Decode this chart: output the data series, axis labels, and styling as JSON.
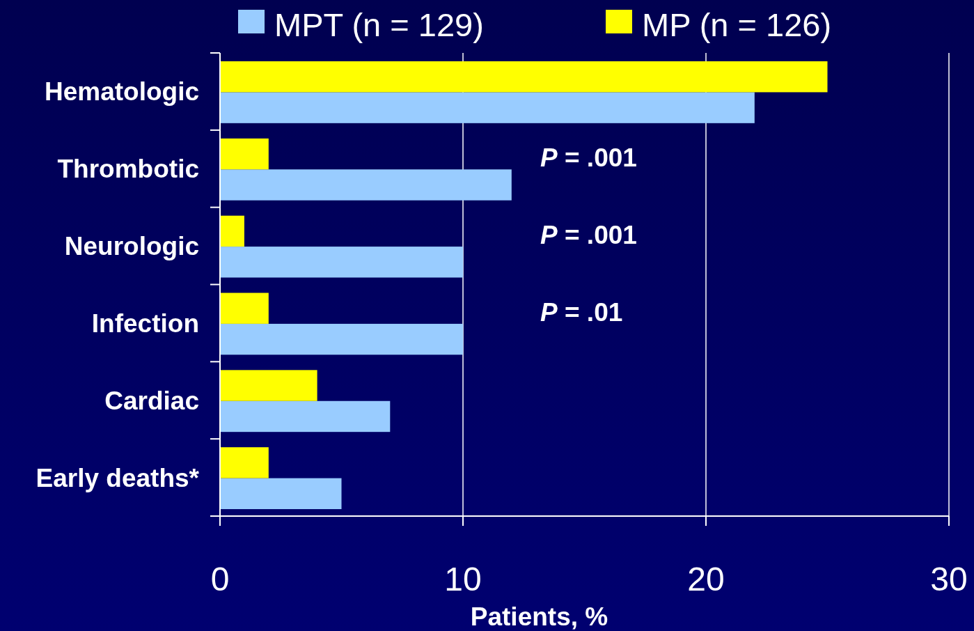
{
  "chart_data": {
    "type": "bar",
    "orientation": "horizontal",
    "categories": [
      "Hematologic",
      "Thrombotic",
      "Neurologic",
      "Infection",
      "Cardiac",
      "Early deaths*"
    ],
    "series": [
      {
        "name": "MPT (n = 129)",
        "color": "#99ccff",
        "values": [
          22,
          12,
          10,
          10,
          7,
          5
        ]
      },
      {
        "name": "MP (n = 126)",
        "color": "#ffff00",
        "values": [
          25,
          2,
          1,
          2,
          4,
          2
        ]
      }
    ],
    "xlim": [
      0,
      30
    ],
    "xticks": [
      0,
      10,
      20,
      30
    ],
    "xlabel": "Patients, %",
    "grid": "x",
    "legend": "top",
    "annotations": [
      "P = .001",
      "P = .001",
      "P = .01"
    ]
  }
}
